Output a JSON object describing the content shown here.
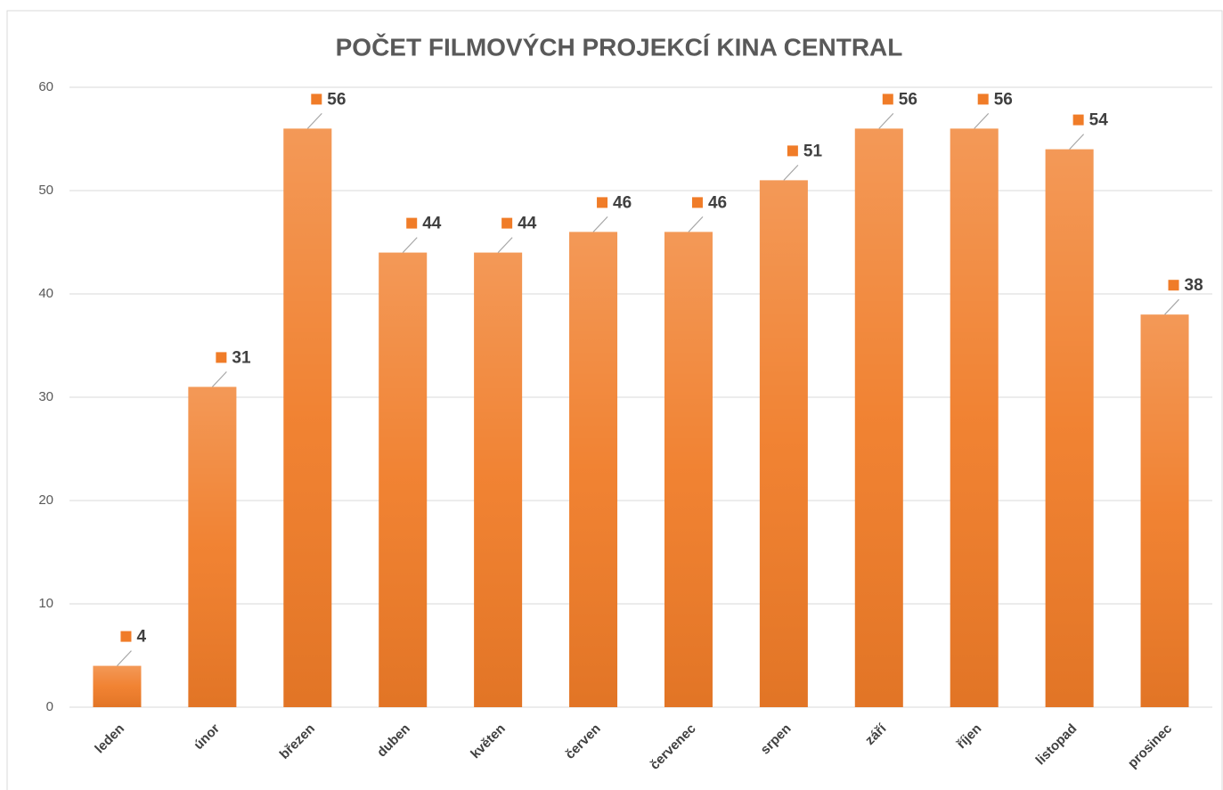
{
  "chart_data": {
    "type": "bar",
    "title": "POČET FILMOVÝCH PROJEKCÍ KINA CENTRAL",
    "categories": [
      "leden",
      "únor",
      "březen",
      "duben",
      "květen",
      "červen",
      "červenec",
      "srpen",
      "září",
      "říjen",
      "listopad",
      "prosinec"
    ],
    "values": [
      4,
      31,
      56,
      44,
      44,
      46,
      46,
      51,
      56,
      56,
      54,
      38
    ],
    "color": "#f07c28",
    "ylim": [
      0,
      60
    ],
    "yticks": [
      0,
      10,
      20,
      30,
      40,
      50,
      60
    ],
    "grid": true
  }
}
